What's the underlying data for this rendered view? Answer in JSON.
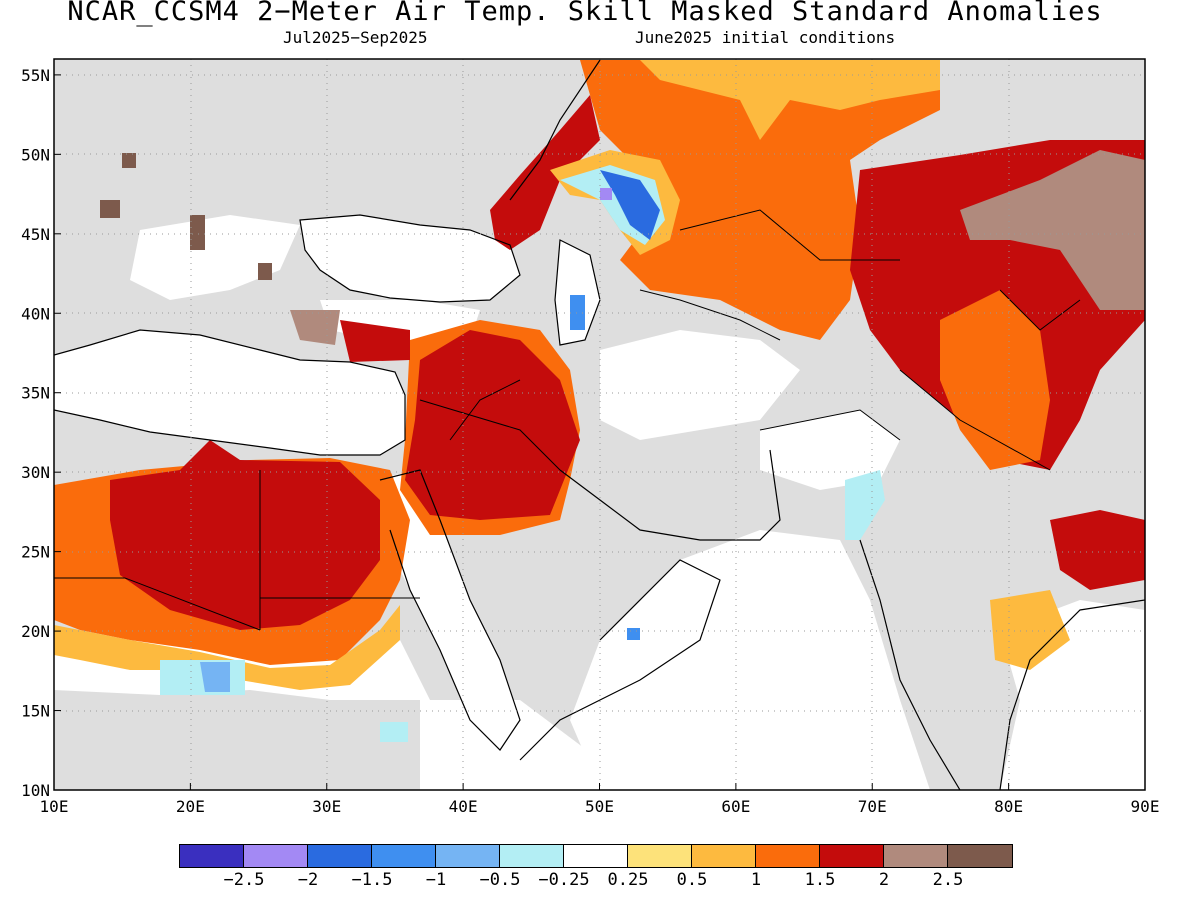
{
  "title": "NCAR_CCSM4 2−Meter Air Temp. Skill Masked Standard Anomalies",
  "subtitle_left": "Jul2025−Sep2025",
  "subtitle_right": "June2025 initial conditions",
  "x_axis": {
    "ticks": [
      "10E",
      "20E",
      "30E",
      "40E",
      "50E",
      "60E",
      "70E",
      "80E",
      "90E"
    ],
    "range": [
      10,
      90
    ]
  },
  "y_axis": {
    "ticks": [
      "10N",
      "15N",
      "20N",
      "25N",
      "30N",
      "35N",
      "40N",
      "45N",
      "50N",
      "55N"
    ],
    "range": [
      10,
      56
    ]
  },
  "legend": {
    "colors": [
      "#3a2fbf",
      "#a389f4",
      "#2a6be0",
      "#3f8ff0",
      "#75b4f3",
      "#b3eef4",
      "#ffffff",
      "#fde27a",
      "#fdba3f",
      "#fa6c0c",
      "#c40c0c",
      "#b08a7d",
      "#7d5a4c"
    ],
    "labels": [
      "−2.5",
      "−2",
      "−1.5",
      "−1",
      "−0.5",
      "−0.25",
      "0.25",
      "0.5",
      "1",
      "1.5",
      "2",
      "2.5"
    ]
  },
  "colors": {
    "masked": "#dedede",
    "no_anomaly": "#ffffff"
  }
}
